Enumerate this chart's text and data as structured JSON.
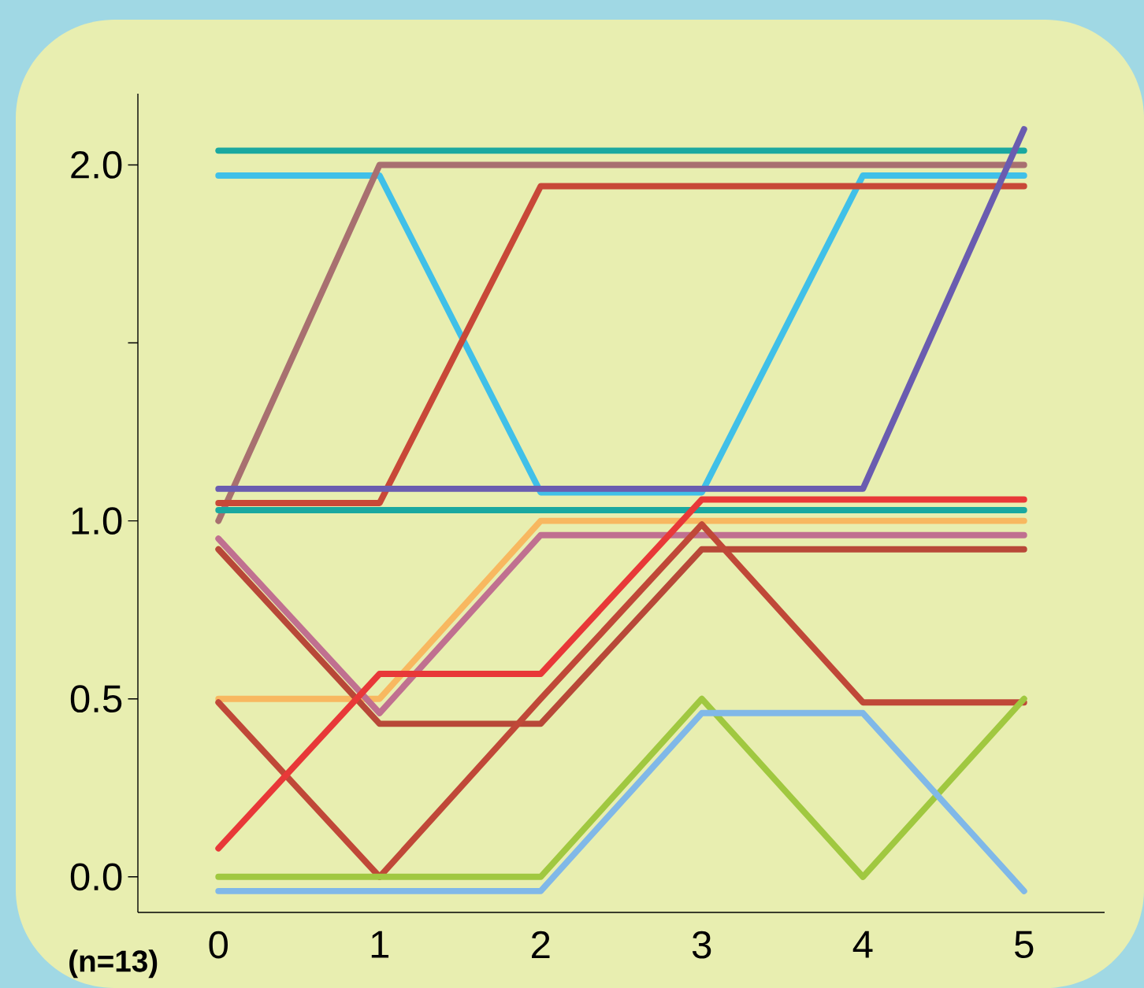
{
  "chart_data": {
    "type": "line",
    "x": [
      0,
      1,
      2,
      3,
      4,
      5
    ],
    "xlim": [
      -0.5,
      5.5
    ],
    "xticks": [
      0,
      1,
      2,
      3,
      4,
      5
    ],
    "ylim": [
      -0.1,
      2.2
    ],
    "yticks": [
      {
        "value": 0,
        "label": "0.0"
      },
      0.5,
      {
        "value": 1,
        "label": "1.0"
      },
      {
        "value": 1.5,
        "label": null
      },
      {
        "value": 2,
        "label": "2.0"
      }
    ],
    "annotations": [
      "**(n=13)**"
    ],
    "series": [
      {
        "color": "#1aa8a0",
        "values": [
          2.04,
          2.04,
          2.04,
          2.04,
          2.04,
          2.04
        ]
      },
      {
        "color": "#40c0e8",
        "values": [
          1.97,
          1.97,
          1.08,
          1.08,
          1.97,
          1.97
        ]
      },
      {
        "color": "#a87070",
        "values": [
          1.0,
          2.0,
          2.0,
          2.0,
          2.0,
          2.0
        ]
      },
      {
        "color": "#c84838",
        "values": [
          1.05,
          1.05,
          1.94,
          1.94,
          1.94,
          1.94
        ]
      },
      {
        "color": "#6a5cb0",
        "values": [
          1.09,
          1.09,
          1.09,
          1.09,
          1.09,
          2.1
        ]
      },
      {
        "color": "#1aa8a0",
        "values": [
          1.03,
          1.03,
          1.03,
          1.03,
          1.03,
          1.03
        ]
      },
      {
        "color": "#f8b860",
        "values": [
          0.5,
          0.5,
          1.0,
          1.0,
          1.0,
          1.0
        ]
      },
      {
        "color": "#c07090",
        "values": [
          0.95,
          0.46,
          0.96,
          0.96,
          0.96,
          0.96
        ]
      },
      {
        "color": "#b84838",
        "values": [
          0.92,
          0.43,
          0.43,
          0.92,
          0.92,
          0.92
        ]
      },
      {
        "color": "#c04838",
        "values": [
          0.49,
          0.0,
          0.5,
          0.99,
          0.49,
          0.49
        ]
      },
      {
        "color": "#a0c840",
        "values": [
          0.0,
          0.0,
          0.0,
          0.5,
          0.0,
          0.5
        ]
      },
      {
        "color": "#80b8e8",
        "values": [
          -0.04,
          -0.04,
          -0.04,
          0.46,
          0.46,
          -0.04
        ]
      },
      {
        "color": "#e83838",
        "values": [
          0.08,
          0.57,
          0.57,
          1.06,
          1.06,
          1.06
        ]
      }
    ]
  }
}
